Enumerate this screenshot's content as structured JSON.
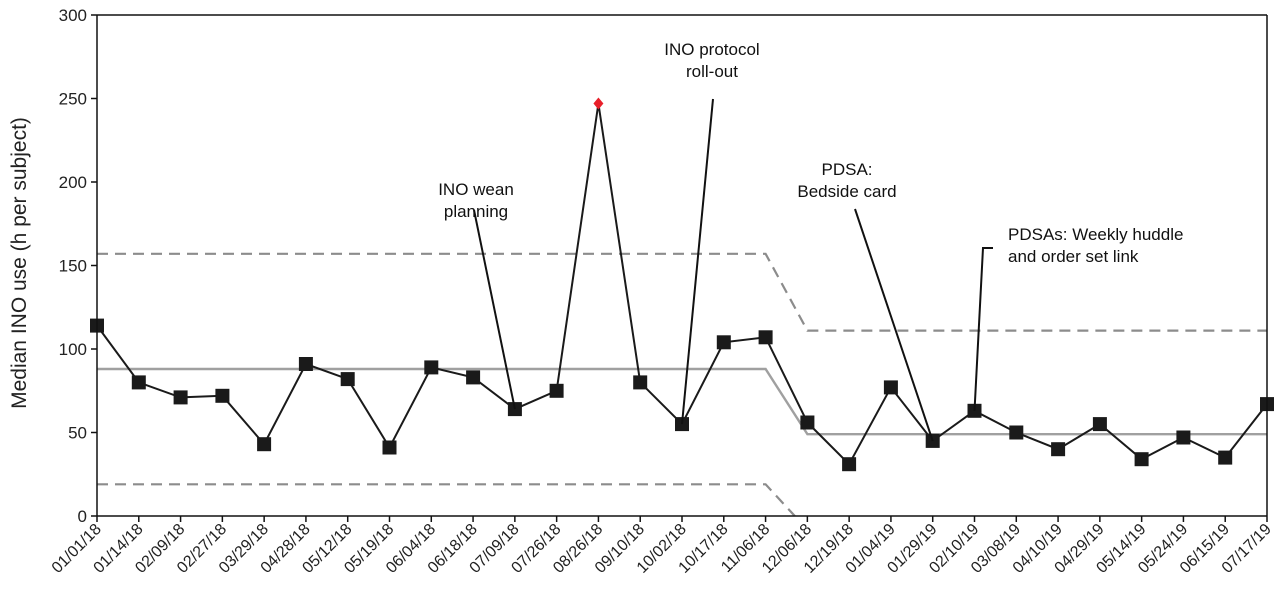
{
  "chart_data": {
    "type": "line",
    "title": "",
    "xlabel": "",
    "ylabel": "Median INO use (h per subject)",
    "ylim": [
      0,
      300
    ],
    "yticks": [
      0,
      50,
      100,
      150,
      200,
      250,
      300
    ],
    "grid": false,
    "legend": "none",
    "categories": [
      "01/01/18",
      "01/14/18",
      "02/09/18",
      "02/27/18",
      "03/29/18",
      "04/28/18",
      "05/12/18",
      "05/19/18",
      "06/04/18",
      "06/18/18",
      "07/09/18",
      "07/26/18",
      "08/26/18",
      "09/10/18",
      "10/02/18",
      "10/17/18",
      "11/06/18",
      "12/06/18",
      "12/19/18",
      "01/04/19",
      "01/29/19",
      "02/10/19",
      "03/08/19",
      "04/10/19",
      "04/29/19",
      "05/14/19",
      "05/24/19",
      "06/15/19",
      "07/17/19"
    ],
    "series": [
      {
        "values": [
          114,
          80,
          71,
          72,
          43,
          91,
          82,
          41,
          89,
          83,
          64,
          75,
          247,
          80,
          55,
          104,
          107,
          56,
          31,
          77,
          45,
          63,
          50,
          40,
          55,
          34,
          47,
          35,
          67
        ]
      }
    ],
    "special_point": {
      "index": 12,
      "value": 247,
      "color": "#e8202a"
    },
    "center_line": [
      {
        "from": 0,
        "to": 16,
        "value": 88
      },
      {
        "from": 17,
        "to": 28,
        "value": 49
      }
    ],
    "upper_limit": [
      {
        "from": 0,
        "to": 16,
        "value": 157
      },
      {
        "from": 17,
        "to": 28,
        "value": 111
      }
    ],
    "lower_limit": [
      {
        "from": 0,
        "to": 16,
        "value": 19
      },
      {
        "from": 17,
        "to": 28,
        "value": 0
      }
    ],
    "annotations": [
      {
        "lines": [
          "INO wean",
          "planning"
        ],
        "target_index": 10
      },
      {
        "lines": [
          "INO protocol",
          "roll-out"
        ],
        "target_index": 14
      },
      {
        "lines": [
          "PDSA:",
          "Bedside card"
        ],
        "target_index": 20
      },
      {
        "lines": [
          "PDSAs: Weekly huddle",
          "and order set link"
        ],
        "target_index": 21
      }
    ],
    "colors": {
      "series": "#1a1a1a",
      "center": "#a0a0a0",
      "limits": "#8c8c8c"
    }
  }
}
